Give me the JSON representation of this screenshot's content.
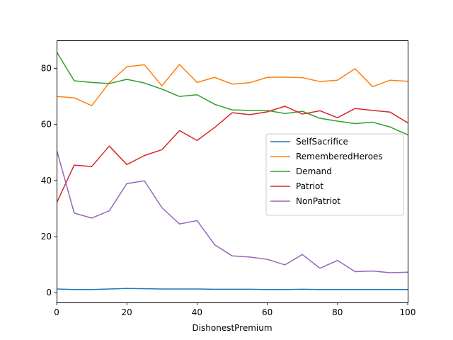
{
  "chart_data": {
    "type": "line",
    "title": "",
    "xlabel": "DishonestPremium",
    "ylabel": "",
    "xlim": [
      0,
      100
    ],
    "ylim": [
      -3.5,
      90
    ],
    "xticks": [
      0,
      20,
      40,
      60,
      80,
      100
    ],
    "yticks": [
      0,
      20,
      40,
      60,
      80
    ],
    "grid": false,
    "legend_position": "center-right",
    "x": [
      0,
      5,
      10,
      15,
      20,
      25,
      30,
      35,
      40,
      45,
      50,
      55,
      60,
      65,
      70,
      75,
      80,
      85,
      90,
      95,
      100
    ],
    "series": [
      {
        "name": "SelfSacrifice",
        "color": "#1f77b4",
        "values": [
          1.3,
          1.1,
          1.1,
          1.3,
          1.5,
          1.4,
          1.3,
          1.3,
          1.3,
          1.2,
          1.2,
          1.2,
          1.1,
          1.1,
          1.2,
          1.1,
          1.1,
          1.1,
          1.1,
          1.1,
          1.1
        ]
      },
      {
        "name": "RememberedHeroes",
        "color": "#ff7f0e",
        "values": [
          70.0,
          69.5,
          66.7,
          74.9,
          80.6,
          81.3,
          73.8,
          81.4,
          75.0,
          76.8,
          74.4,
          74.9,
          76.8,
          76.9,
          76.7,
          75.3,
          75.8,
          79.9,
          73.5,
          75.8,
          75.4
        ]
      },
      {
        "name": "Demand",
        "color": "#2ca02c",
        "values": [
          85.9,
          75.6,
          75.0,
          74.6,
          76.1,
          74.8,
          72.6,
          70.0,
          70.6,
          67.2,
          65.2,
          65.0,
          65.0,
          63.9,
          64.7,
          62.2,
          61.2,
          60.3,
          60.8,
          59.1,
          56.3
        ]
      },
      {
        "name": "Patriot",
        "color": "#d62728",
        "values": [
          32.0,
          45.5,
          45.0,
          52.3,
          45.7,
          48.9,
          51.0,
          57.8,
          54.3,
          58.9,
          64.2,
          63.5,
          64.5,
          66.5,
          63.7,
          64.9,
          62.4,
          65.7,
          65.0,
          64.4,
          60.6
        ]
      },
      {
        "name": "NonPatriot",
        "color": "#9467bd",
        "values": [
          51.0,
          28.4,
          26.6,
          29.2,
          38.9,
          39.9,
          30.3,
          24.5,
          25.7,
          17.1,
          13.1,
          12.7,
          11.9,
          9.9,
          13.6,
          8.7,
          11.5,
          7.5,
          7.7,
          7.1,
          7.3
        ]
      }
    ]
  }
}
